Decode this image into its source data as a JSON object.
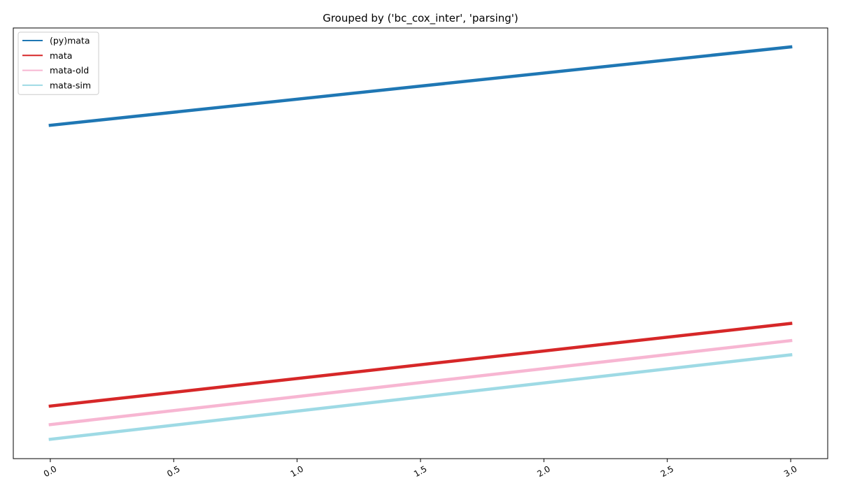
{
  "chart_data": {
    "type": "line",
    "title": "Grouped by ('bc_cox_inter', 'parsing')",
    "xlabel": "",
    "ylabel": "",
    "xlim": [
      -0.15,
      3.15
    ],
    "ylim": [
      0,
      100
    ],
    "x_ticks": [
      0.0,
      0.5,
      1.0,
      1.5,
      2.0,
      2.5,
      3.0
    ],
    "x_tick_labels": [
      "0.0",
      "0.5",
      "1.0",
      "1.5",
      "2.0",
      "2.5",
      "3.0"
    ],
    "y_ticks_visible": false,
    "grid": false,
    "legend_position": "top-left",
    "series": [
      {
        "name": "(py)mata",
        "color": "#1f77b4",
        "x": [
          0,
          3
        ],
        "y": [
          77.4,
          95.6
        ]
      },
      {
        "name": "mata",
        "color": "#d62728",
        "x": [
          0,
          3
        ],
        "y": [
          12.2,
          31.4
        ]
      },
      {
        "name": "mata-old",
        "color": "#f7b6d2",
        "x": [
          0,
          3
        ],
        "y": [
          7.9,
          27.4
        ]
      },
      {
        "name": "mata-sim",
        "color": "#9edae5",
        "x": [
          0,
          3
        ],
        "y": [
          4.5,
          24.1
        ]
      }
    ]
  }
}
